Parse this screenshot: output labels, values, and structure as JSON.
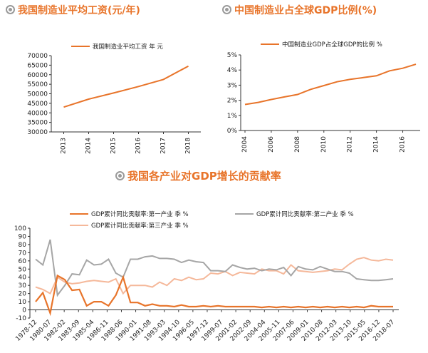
{
  "titles": {
    "wage": "我国制造业平均工资(元/年)",
    "gdp_share": "中国制造业占全球GDP比例(%)",
    "contribution": "我国各产业对GDP增长的贡献率"
  },
  "colors": {
    "orange": "#e8742a",
    "gray": "#a6a6a6",
    "peach": "#f5b89a"
  },
  "chart_data": [
    {
      "type": "line",
      "title": "我国制造业平均工资(元/年)",
      "categories": [
        "2013",
        "2014",
        "2015",
        "2016",
        "2017",
        "2018"
      ],
      "series": [
        {
          "name": "我国制造业平均工资 年 元",
          "values": [
            43000,
            47200,
            50400,
            53800,
            57500,
            64500
          ]
        }
      ],
      "ylim": [
        30000,
        70000
      ],
      "yticks": [
        "30000",
        "35000",
        "40000",
        "45000",
        "50000",
        "55000",
        "60000",
        "65000",
        "70000"
      ]
    },
    {
      "type": "line",
      "title": "中国制造业占全球GDP比例(%)",
      "x": [
        2004,
        2005,
        2006,
        2007,
        2008,
        2009,
        2010,
        2011,
        2012,
        2013,
        2014,
        2015,
        2016,
        2017
      ],
      "xticks": [
        "2004",
        "2006",
        "2008",
        "2010",
        "2012",
        "2014",
        "2016"
      ],
      "series": [
        {
          "name": "中国制造业GDP占全球GDP的比例 %",
          "values": [
            1.72,
            1.86,
            2.05,
            2.22,
            2.38,
            2.72,
            2.97,
            3.22,
            3.38,
            3.5,
            3.62,
            3.95,
            4.12,
            4.38
          ]
        }
      ],
      "ylim": [
        0,
        5
      ],
      "yticks": [
        "0%",
        "1%",
        "2%",
        "3%",
        "4%",
        "5%"
      ]
    },
    {
      "type": "line",
      "title": "我国各产业对GDP增长的贡献率",
      "xticks": [
        "1978-12",
        "1980-07",
        "1982-02",
        "1983-09",
        "1985-04",
        "1986-11",
        "1988-06",
        "1990-01",
        "1991-08",
        "1993-03",
        "1994-10",
        "1996-05",
        "1997-12",
        "1999-07",
        "2001-02",
        "2002-09",
        "2004-04",
        "2005-11",
        "2007-06",
        "2009-01",
        "2010-08",
        "2012-03",
        "2013-10",
        "2015-05",
        "2016-12",
        "2018-07"
      ],
      "ylim": [
        -10,
        100
      ],
      "yticks": [
        "-10",
        "0",
        "10",
        "20",
        "30",
        "40",
        "50",
        "60",
        "70",
        "80",
        "90",
        "100"
      ],
      "series": [
        {
          "name": "GDP累计同比贡献率:第一产业 季 %",
          "values": [
            10,
            21,
            -4,
            42,
            37,
            24,
            25,
            5,
            10,
            10,
            5,
            18,
            40,
            9,
            9,
            5,
            7,
            5,
            5,
            4,
            6,
            4,
            4,
            5,
            4,
            5,
            4,
            4,
            4,
            4,
            4,
            3,
            4,
            3,
            4,
            3,
            4,
            3,
            4,
            3,
            4,
            3,
            4,
            3,
            4,
            3,
            5,
            4,
            4,
            4
          ]
        },
        {
          "name": "GDP累计同比贡献率:第二产业 季 %",
          "values": [
            62,
            55,
            86,
            18,
            30,
            44,
            43,
            61,
            55,
            56,
            62,
            45,
            40,
            62,
            62,
            65,
            66,
            63,
            63,
            62,
            58,
            61,
            59,
            58,
            48,
            48,
            47,
            55,
            52,
            50,
            51,
            48,
            50,
            49,
            52,
            42,
            53,
            50,
            49,
            53,
            50,
            47,
            47,
            45,
            38,
            37,
            36,
            36,
            37,
            38
          ]
        },
        {
          "name": "GDP累计同比贡献率:第三产业 季 %",
          "values": [
            28,
            25,
            20,
            40,
            34,
            32,
            33,
            35,
            36,
            35,
            34,
            38,
            20,
            30,
            30,
            30,
            28,
            34,
            30,
            38,
            36,
            40,
            37,
            38,
            45,
            44,
            47,
            42,
            46,
            45,
            44,
            50,
            48,
            48,
            44,
            55,
            48,
            47,
            46,
            47,
            48,
            50,
            49,
            56,
            62,
            64,
            61,
            60,
            62,
            61
          ]
        }
      ]
    }
  ]
}
